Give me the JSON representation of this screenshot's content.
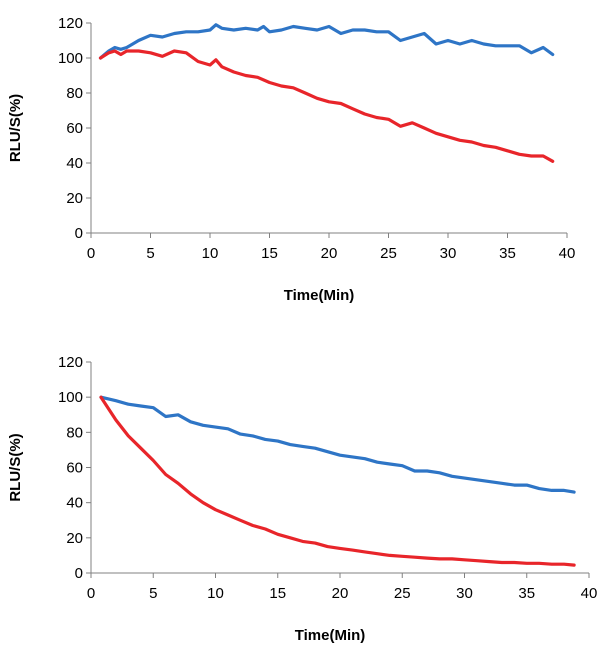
{
  "chart_data": [
    {
      "type": "line",
      "xlabel": "Time(Min)",
      "ylabel": "RLU/S(%)",
      "xlim": [
        0,
        40
      ],
      "ylim": [
        0,
        120
      ],
      "xticks": [
        0,
        5,
        10,
        15,
        20,
        25,
        30,
        35,
        40
      ],
      "yticks": [
        0,
        20,
        40,
        60,
        80,
        100,
        120
      ],
      "grid": false,
      "legend": "none",
      "series": [
        {
          "color": "#2e75c6",
          "x": [
            0.8,
            1.5,
            2,
            2.5,
            3,
            3.5,
            4,
            5,
            6,
            7,
            8,
            9,
            10,
            10.5,
            11,
            12,
            13,
            14,
            14.5,
            15,
            16,
            17,
            18,
            19,
            20,
            21,
            22,
            23,
            24,
            25,
            26,
            27,
            28,
            29,
            30,
            31,
            32,
            33,
            34,
            35,
            36,
            37,
            38,
            38.8
          ],
          "y": [
            100,
            104,
            106,
            105,
            106,
            108,
            110,
            113,
            112,
            114,
            115,
            115,
            116,
            119,
            117,
            116,
            117,
            116,
            118,
            115,
            116,
            118,
            117,
            116,
            118,
            114,
            116,
            116,
            115,
            115,
            110,
            112,
            114,
            108,
            110,
            108,
            110,
            108,
            107,
            107,
            107,
            103,
            106,
            102
          ]
        },
        {
          "color": "#e8252a",
          "x": [
            0.8,
            1.5,
            2,
            2.5,
            3,
            4,
            5,
            6,
            7,
            8,
            9,
            10,
            10.5,
            11,
            12,
            13,
            14,
            15,
            16,
            17,
            18,
            19,
            20,
            21,
            22,
            23,
            24,
            25,
            26,
            27,
            28,
            29,
            30,
            31,
            32,
            33,
            34,
            35,
            36,
            37,
            38,
            38.8
          ],
          "y": [
            100,
            103,
            104,
            102,
            104,
            104,
            103,
            101,
            104,
            103,
            98,
            96,
            99,
            95,
            92,
            90,
            89,
            86,
            84,
            83,
            80,
            77,
            75,
            74,
            71,
            68,
            66,
            65,
            61,
            63,
            60,
            57,
            55,
            53,
            52,
            50,
            49,
            47,
            45,
            44,
            44,
            41
          ]
        }
      ]
    },
    {
      "type": "line",
      "xlabel": "Time(Min)",
      "ylabel": "RLU/S(%)",
      "xlim": [
        0,
        40
      ],
      "ylim": [
        0,
        120
      ],
      "xticks": [
        0,
        5,
        10,
        15,
        20,
        25,
        30,
        35,
        40
      ],
      "yticks": [
        0,
        20,
        40,
        60,
        80,
        100,
        120
      ],
      "grid": false,
      "legend": "none",
      "series": [
        {
          "color": "#2e75c6",
          "x": [
            0.8,
            2,
            3,
            4,
            5,
            6,
            7,
            8,
            9,
            10,
            11,
            12,
            13,
            14,
            15,
            16,
            17,
            18,
            19,
            20,
            21,
            22,
            23,
            24,
            25,
            26,
            27,
            28,
            29,
            30,
            31,
            32,
            33,
            34,
            35,
            36,
            37,
            38,
            38.8
          ],
          "y": [
            100,
            98,
            96,
            95,
            94,
            89,
            90,
            86,
            84,
            83,
            82,
            79,
            78,
            76,
            75,
            73,
            72,
            71,
            69,
            67,
            66,
            65,
            63,
            62,
            61,
            58,
            58,
            57,
            55,
            54,
            53,
            52,
            51,
            50,
            50,
            48,
            47,
            47,
            46
          ]
        },
        {
          "color": "#e8252a",
          "x": [
            0.8,
            2,
            3,
            4,
            5,
            6,
            7,
            8,
            9,
            10,
            11,
            12,
            13,
            14,
            15,
            16,
            17,
            18,
            19,
            20,
            21,
            22,
            23,
            24,
            25,
            26,
            27,
            28,
            29,
            30,
            31,
            32,
            33,
            34,
            35,
            36,
            37,
            38,
            38.8
          ],
          "y": [
            100,
            87,
            78,
            71,
            64,
            56,
            51,
            45,
            40,
            36,
            33,
            30,
            27,
            25,
            22,
            20,
            18,
            17,
            15,
            14,
            13,
            12,
            11,
            10,
            9.5,
            9,
            8.5,
            8,
            8,
            7.5,
            7,
            6.5,
            6,
            6,
            5.5,
            5.5,
            5,
            5,
            4.5
          ]
        }
      ]
    }
  ]
}
